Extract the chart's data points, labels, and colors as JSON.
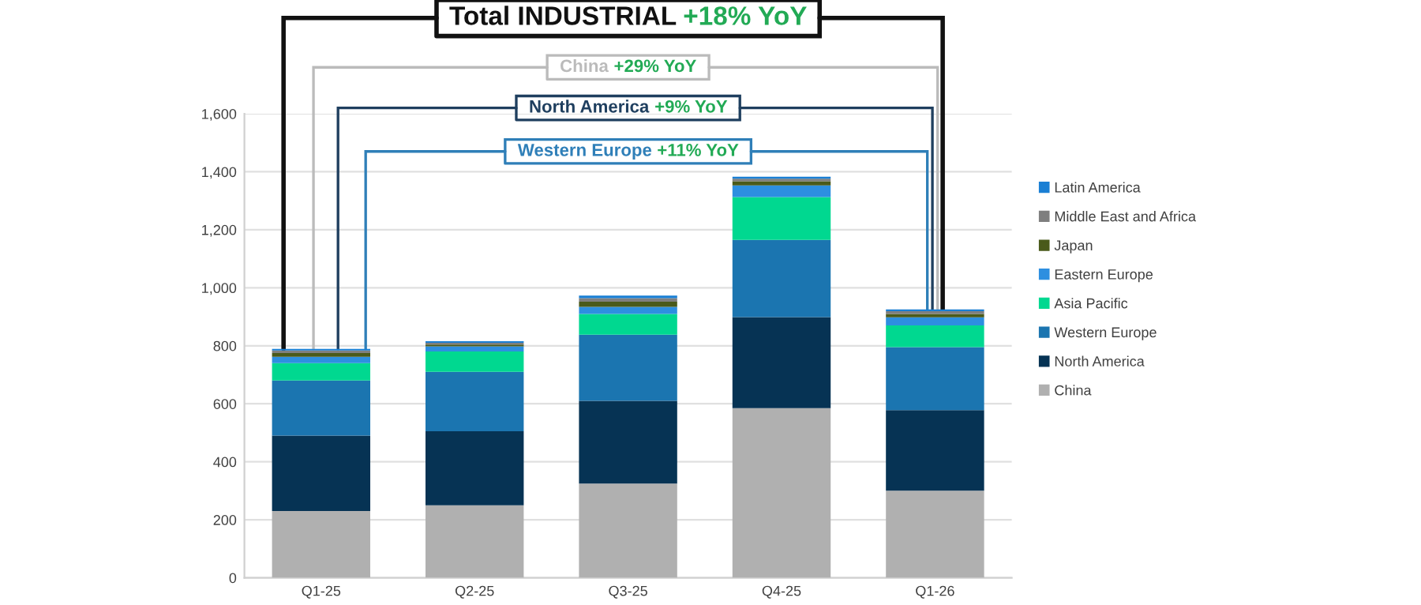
{
  "chart_data": {
    "type": "bar",
    "stacked": true,
    "categories": [
      "Q1-25",
      "Q2-25",
      "Q3-25",
      "Q4-25",
      "Q1-26"
    ],
    "series": [
      {
        "name": "China",
        "color": "#b0b0b0",
        "values": [
          230,
          250,
          325,
          585,
          300
        ]
      },
      {
        "name": "North America",
        "color": "#063354",
        "values": [
          260,
          255,
          285,
          314,
          278
        ]
      },
      {
        "name": "Western Europe",
        "color": "#1b75b0",
        "values": [
          190,
          205,
          228,
          266,
          217
        ]
      },
      {
        "name": "Asia Pacific",
        "color": "#00d890",
        "values": [
          60,
          70,
          72,
          148,
          75
        ]
      },
      {
        "name": "Eastern Europe",
        "color": "#2d8fe0",
        "values": [
          22,
          18,
          24,
          40,
          28
        ]
      },
      {
        "name": "Japan",
        "color": "#4a5a1a",
        "values": [
          13,
          6,
          18,
          14,
          12
        ]
      },
      {
        "name": "Middle East and Africa",
        "color": "#7f7f7f",
        "values": [
          9,
          6,
          12,
          9,
          9
        ]
      },
      {
        "name": "Latin America",
        "color": "#1a7fd4",
        "values": [
          5,
          6,
          9,
          7,
          6
        ]
      }
    ],
    "ylim": [
      0,
      1600
    ],
    "yticks": [
      0,
      200,
      400,
      600,
      800,
      {
        "value": 1000,
        "label": "1,000"
      },
      {
        "value": 1200,
        "label": "1,200"
      },
      {
        "value": 1400,
        "label": "1,400"
      },
      {
        "value": 1600,
        "label": "1,600"
      }
    ],
    "grid": "y",
    "legend": "right",
    "annotations": [
      {
        "text": "Total INDUSTRIAL +18% YoY",
        "x": "Q1-26",
        "y": 925
      },
      {
        "text": "China +29% YoY",
        "x": "Q1-26",
        "y": 925
      },
      {
        "text": "North America +9% YoY",
        "x": "Q1-26",
        "y": 925
      },
      {
        "text": "Western Europe +11% YoY",
        "x": "Q1-26",
        "y": 925
      }
    ]
  }
}
